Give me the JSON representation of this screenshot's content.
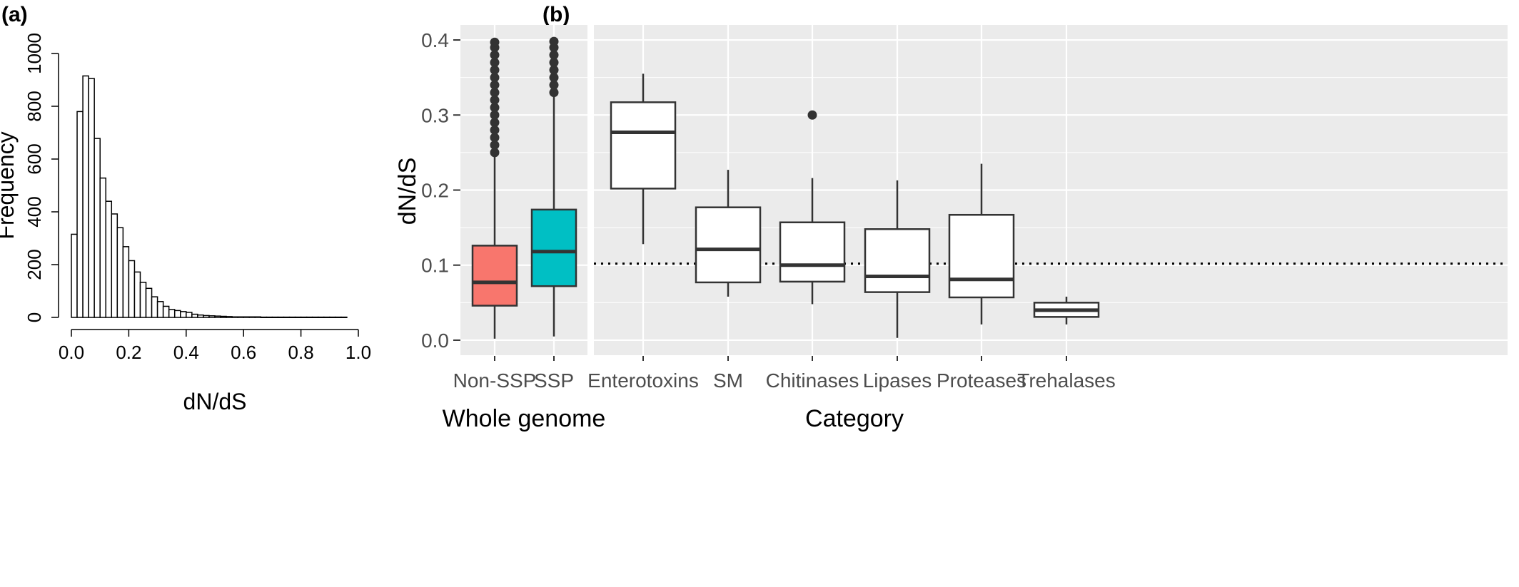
{
  "panel_a_label": "(a)",
  "panel_b_label": "(b)",
  "chart_data": [
    {
      "type": "bar",
      "subtype": "histogram",
      "xlabel": "dN/dS",
      "ylabel": "Frequency",
      "xlim": [
        0,
        1
      ],
      "ylim": [
        0,
        1000
      ],
      "xticks": [
        "0.0",
        "0.2",
        "0.4",
        "0.6",
        "0.8",
        "1.0"
      ],
      "yticks": [
        "0",
        "200",
        "400",
        "600",
        "800",
        "1000"
      ],
      "bin_width": 0.02,
      "bin_start": 0.0,
      "values": [
        315,
        780,
        915,
        905,
        678,
        528,
        440,
        392,
        340,
        268,
        215,
        172,
        133,
        110,
        78,
        60,
        42,
        30,
        26,
        22,
        19,
        12,
        9,
        7,
        6,
        5,
        4,
        3,
        2,
        2,
        2,
        2,
        2,
        1,
        1,
        1,
        1,
        1,
        1,
        1,
        1,
        1,
        1,
        1,
        1,
        1,
        1,
        1
      ],
      "grid": false
    },
    {
      "type": "box",
      "ylabel": "dN/dS",
      "ylim": [
        -0.02,
        0.42
      ],
      "yticks": [
        "0.0",
        "0.1",
        "0.2",
        "0.3",
        "0.4"
      ],
      "grid": true,
      "reference_line": 0.102,
      "facets": [
        {
          "xlabel": "Whole genome",
          "groups": [
            {
              "name": "Non-SSP",
              "color": "#f8766d",
              "min": 0.002,
              "q1": 0.046,
              "median": 0.077,
              "q3": 0.126,
              "max": 0.245,
              "outliers": [
                0.25,
                0.26,
                0.27,
                0.28,
                0.29,
                0.3,
                0.31,
                0.32,
                0.33,
                0.34,
                0.35,
                0.36,
                0.37,
                0.38,
                0.39,
                0.397
              ]
            },
            {
              "name": "SSP",
              "color": "#00bfc4",
              "min": 0.005,
              "q1": 0.072,
              "median": 0.118,
              "q3": 0.174,
              "max": 0.325,
              "outliers": [
                0.33,
                0.34,
                0.35,
                0.36,
                0.37,
                0.38,
                0.39,
                0.398
              ]
            }
          ]
        },
        {
          "xlabel": "Category",
          "groups": [
            {
              "name": "Enterotoxins",
              "color": "#ffffff",
              "min": 0.128,
              "q1": 0.202,
              "median": 0.277,
              "q3": 0.317,
              "max": 0.355,
              "outliers": []
            },
            {
              "name": "SM",
              "color": "#ffffff",
              "min": 0.058,
              "q1": 0.077,
              "median": 0.121,
              "q3": 0.177,
              "max": 0.227,
              "outliers": []
            },
            {
              "name": "Chitinases",
              "color": "#ffffff",
              "min": 0.048,
              "q1": 0.078,
              "median": 0.1,
              "q3": 0.157,
              "max": 0.216,
              "outliers": [
                0.3
              ]
            },
            {
              "name": "Lipases",
              "color": "#ffffff",
              "min": 0.003,
              "q1": 0.064,
              "median": 0.085,
              "q3": 0.148,
              "max": 0.213,
              "outliers": []
            },
            {
              "name": "Proteases",
              "color": "#ffffff",
              "min": 0.021,
              "q1": 0.057,
              "median": 0.081,
              "q3": 0.167,
              "max": 0.235,
              "outliers": []
            },
            {
              "name": "Trehalases",
              "color": "#ffffff",
              "min": 0.021,
              "q1": 0.031,
              "median": 0.04,
              "q3": 0.05,
              "max": 0.058,
              "outliers": []
            }
          ]
        }
      ]
    }
  ]
}
